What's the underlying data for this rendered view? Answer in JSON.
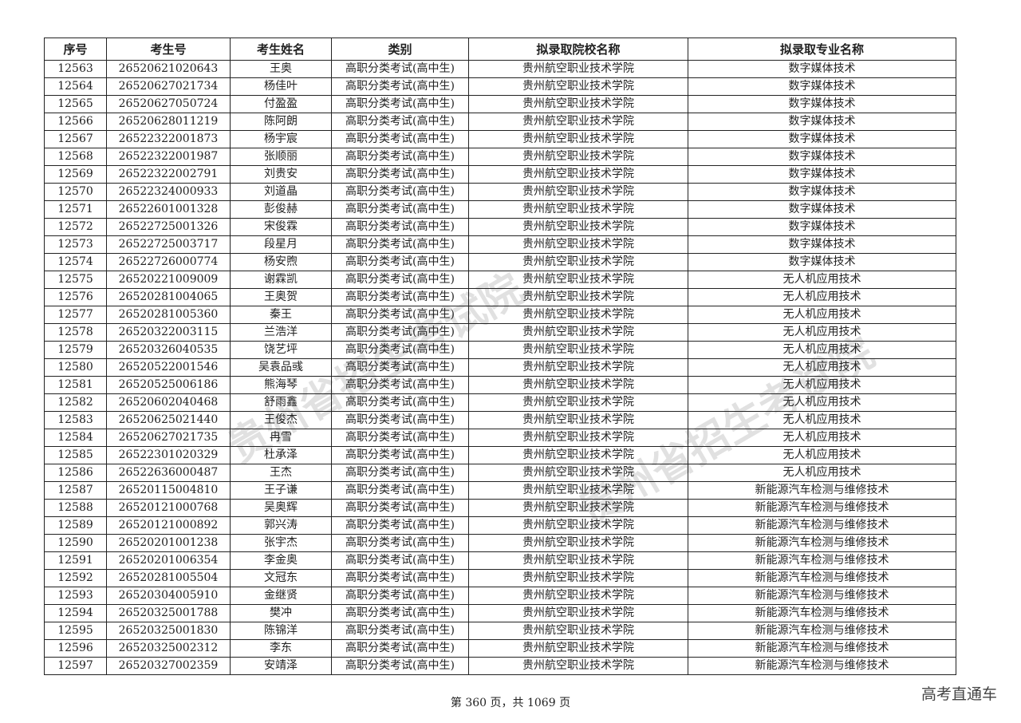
{
  "table": {
    "headers": [
      "序号",
      "考生号",
      "考生姓名",
      "类别",
      "拟录取院校名称",
      "拟录取专业名称"
    ],
    "rows": [
      [
        "12563",
        "26520621020643",
        "王奥",
        "高职分类考试(高中生)",
        "贵州航空职业技术学院",
        "数字媒体技术"
      ],
      [
        "12564",
        "26520627021734",
        "杨佳叶",
        "高职分类考试(高中生)",
        "贵州航空职业技术学院",
        "数字媒体技术"
      ],
      [
        "12565",
        "26520627050724",
        "付盈盈",
        "高职分类考试(高中生)",
        "贵州航空职业技术学院",
        "数字媒体技术"
      ],
      [
        "12566",
        "26520628011219",
        "陈阿朗",
        "高职分类考试(高中生)",
        "贵州航空职业技术学院",
        "数字媒体技术"
      ],
      [
        "12567",
        "26522322001873",
        "杨宇宸",
        "高职分类考试(高中生)",
        "贵州航空职业技术学院",
        "数字媒体技术"
      ],
      [
        "12568",
        "26522322001987",
        "张顺丽",
        "高职分类考试(高中生)",
        "贵州航空职业技术学院",
        "数字媒体技术"
      ],
      [
        "12569",
        "26522322002791",
        "刘贵安",
        "高职分类考试(高中生)",
        "贵州航空职业技术学院",
        "数字媒体技术"
      ],
      [
        "12570",
        "26522324000933",
        "刘道晶",
        "高职分类考试(高中生)",
        "贵州航空职业技术学院",
        "数字媒体技术"
      ],
      [
        "12571",
        "26522601001328",
        "彭俊赫",
        "高职分类考试(高中生)",
        "贵州航空职业技术学院",
        "数字媒体技术"
      ],
      [
        "12572",
        "26522725001326",
        "宋俊霖",
        "高职分类考试(高中生)",
        "贵州航空职业技术学院",
        "数字媒体技术"
      ],
      [
        "12573",
        "26522725003717",
        "段星月",
        "高职分类考试(高中生)",
        "贵州航空职业技术学院",
        "数字媒体技术"
      ],
      [
        "12574",
        "26522726000774",
        "杨安煦",
        "高职分类考试(高中生)",
        "贵州航空职业技术学院",
        "数字媒体技术"
      ],
      [
        "12575",
        "26520221009009",
        "谢霖凯",
        "高职分类考试(高中生)",
        "贵州航空职业技术学院",
        "无人机应用技术"
      ],
      [
        "12576",
        "26520281004065",
        "王奥贺",
        "高职分类考试(高中生)",
        "贵州航空职业技术学院",
        "无人机应用技术"
      ],
      [
        "12577",
        "26520281005360",
        "秦王",
        "高职分类考试(高中生)",
        "贵州航空职业技术学院",
        "无人机应用技术"
      ],
      [
        "12578",
        "26520322003115",
        "兰浩洋",
        "高职分类考试(高中生)",
        "贵州航空职业技术学院",
        "无人机应用技术"
      ],
      [
        "12579",
        "26520326040535",
        "饶艺坪",
        "高职分类考试(高中生)",
        "贵州航空职业技术学院",
        "无人机应用技术"
      ],
      [
        "12580",
        "26520522001546",
        "吴袁品彧",
        "高职分类考试(高中生)",
        "贵州航空职业技术学院",
        "无人机应用技术"
      ],
      [
        "12581",
        "26520525006186",
        "熊海琴",
        "高职分类考试(高中生)",
        "贵州航空职业技术学院",
        "无人机应用技术"
      ],
      [
        "12582",
        "26520602040468",
        "舒雨鑫",
        "高职分类考试(高中生)",
        "贵州航空职业技术学院",
        "无人机应用技术"
      ],
      [
        "12583",
        "26520625021440",
        "王俊杰",
        "高职分类考试(高中生)",
        "贵州航空职业技术学院",
        "无人机应用技术"
      ],
      [
        "12584",
        "26520627021735",
        "冉雪",
        "高职分类考试(高中生)",
        "贵州航空职业技术学院",
        "无人机应用技术"
      ],
      [
        "12585",
        "26522301020329",
        "杜承泽",
        "高职分类考试(高中生)",
        "贵州航空职业技术学院",
        "无人机应用技术"
      ],
      [
        "12586",
        "26522636000487",
        "王杰",
        "高职分类考试(高中生)",
        "贵州航空职业技术学院",
        "无人机应用技术"
      ],
      [
        "12587",
        "26520115004810",
        "王子谦",
        "高职分类考试(高中生)",
        "贵州航空职业技术学院",
        "新能源汽车检测与维修技术"
      ],
      [
        "12588",
        "26520121000768",
        "吴奥辉",
        "高职分类考试(高中生)",
        "贵州航空职业技术学院",
        "新能源汽车检测与维修技术"
      ],
      [
        "12589",
        "26520121000892",
        "郭兴涛",
        "高职分类考试(高中生)",
        "贵州航空职业技术学院",
        "新能源汽车检测与维修技术"
      ],
      [
        "12590",
        "26520201001238",
        "张宇杰",
        "高职分类考试(高中生)",
        "贵州航空职业技术学院",
        "新能源汽车检测与维修技术"
      ],
      [
        "12591",
        "26520201006354",
        "李金奥",
        "高职分类考试(高中生)",
        "贵州航空职业技术学院",
        "新能源汽车检测与维修技术"
      ],
      [
        "12592",
        "26520281005504",
        "文冠东",
        "高职分类考试(高中生)",
        "贵州航空职业技术学院",
        "新能源汽车检测与维修技术"
      ],
      [
        "12593",
        "26520304005910",
        "金继贤",
        "高职分类考试(高中生)",
        "贵州航空职业技术学院",
        "新能源汽车检测与维修技术"
      ],
      [
        "12594",
        "26520325001788",
        "樊冲",
        "高职分类考试(高中生)",
        "贵州航空职业技术学院",
        "新能源汽车检测与维修技术"
      ],
      [
        "12595",
        "26520325001830",
        "陈锦洋",
        "高职分类考试(高中生)",
        "贵州航空职业技术学院",
        "新能源汽车检测与维修技术"
      ],
      [
        "12596",
        "26520325002312",
        "李东",
        "高职分类考试(高中生)",
        "贵州航空职业技术学院",
        "新能源汽车检测与维修技术"
      ],
      [
        "12597",
        "26520327002359",
        "安靖泽",
        "高职分类考试(高中生)",
        "贵州航空职业技术学院",
        "新能源汽车检测与维修技术"
      ]
    ]
  },
  "footer": {
    "page_text": "第 360 页，共 1069 页"
  },
  "brand": "高考直通车",
  "watermark": "贵州省招生考试院"
}
